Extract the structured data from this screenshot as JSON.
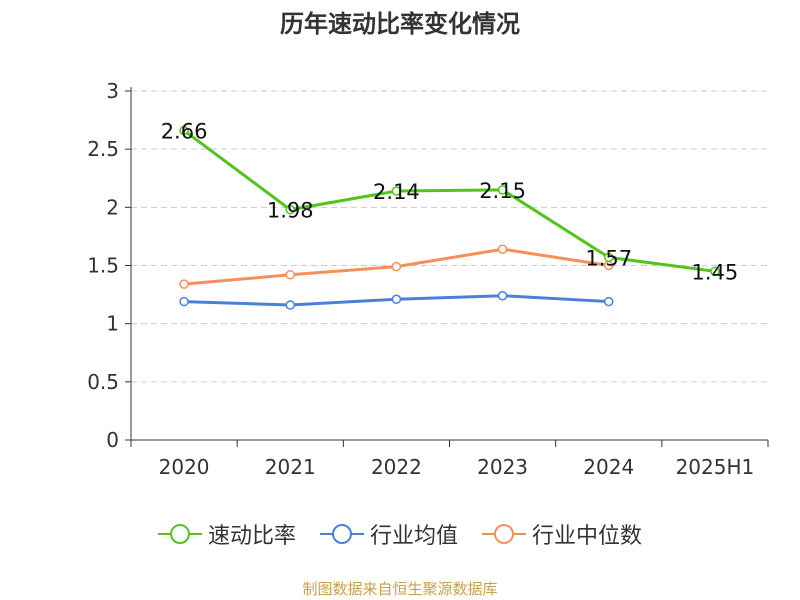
{
  "chart_data": {
    "type": "line",
    "title": "历年速动比率变化情况",
    "categories": [
      "2020",
      "2021",
      "2022",
      "2023",
      "2024",
      "2025H1"
    ],
    "ylim": [
      0,
      3
    ],
    "yticks": [
      0,
      0.5,
      1,
      1.5,
      2,
      2.5,
      3
    ],
    "ytick_labels": [
      "0",
      "0.5",
      "1",
      "1.5",
      "2",
      "2.5",
      "3"
    ],
    "grid": true,
    "legend_position": "bottom",
    "series": [
      {
        "name": "速动比率",
        "color": "#52c41a",
        "values": [
          2.66,
          1.98,
          2.14,
          2.15,
          1.57,
          1.45
        ],
        "labels": [
          "2.66",
          "1.98",
          "2.14",
          "2.15",
          "1.57",
          "1.45"
        ]
      },
      {
        "name": "行业均值",
        "color": "#4a7fdb",
        "values": [
          1.19,
          1.16,
          1.21,
          1.24,
          1.19,
          null
        ]
      },
      {
        "name": "行业中位数",
        "color": "#f5905a",
        "values": [
          1.34,
          1.42,
          1.49,
          1.64,
          1.5,
          null
        ]
      }
    ]
  },
  "source": "制图数据来自恒生聚源数据库"
}
